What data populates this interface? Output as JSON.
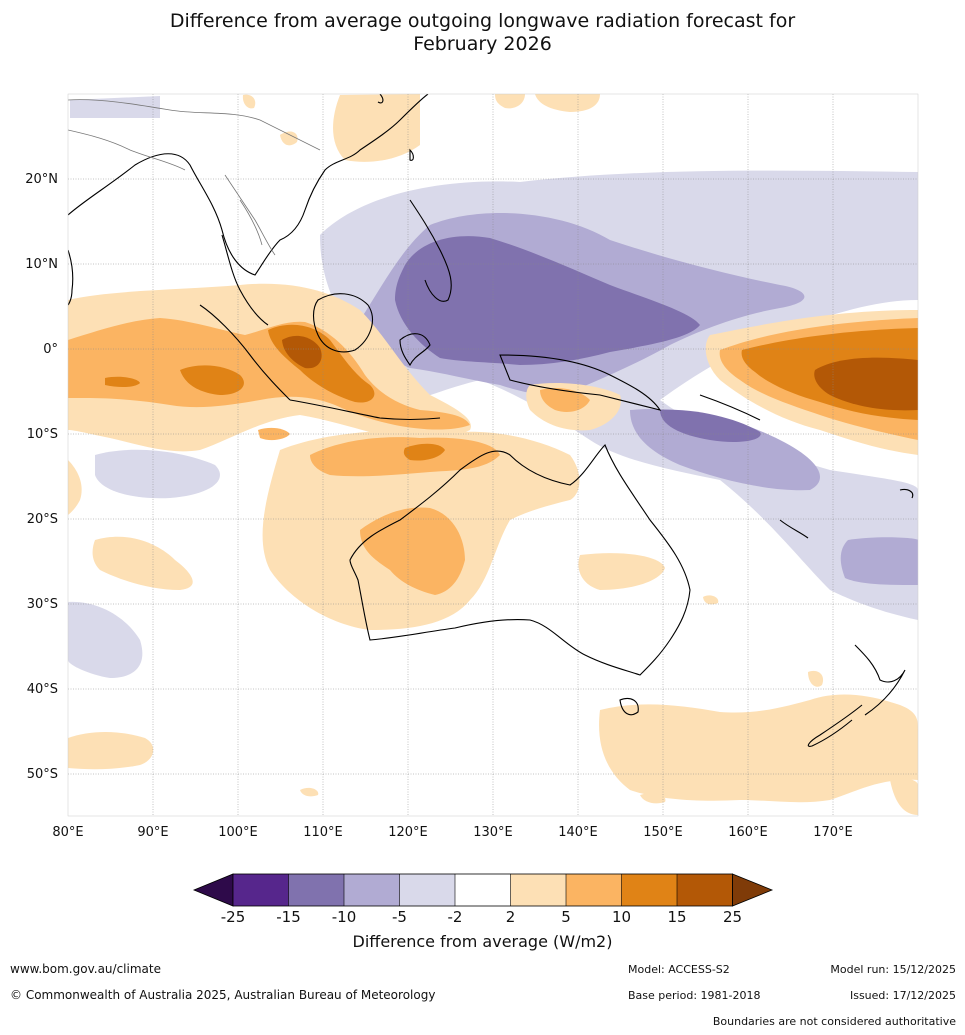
{
  "title": {
    "line1": "Difference from average outgoing longwave radiation forecast for",
    "line2": "February 2026"
  },
  "map": {
    "lat_labels": [
      "20°N",
      "10°N",
      "0°",
      "10°S",
      "20°S",
      "30°S",
      "40°S",
      "50°S"
    ],
    "lon_labels": [
      "80°E",
      "90°E",
      "100°E",
      "110°E",
      "120°E",
      "130°E",
      "140°E",
      "150°E",
      "160°E",
      "170°E"
    ]
  },
  "colorbar": {
    "ticks": [
      "-25",
      "-15",
      "-10",
      "-5",
      "-2",
      "2",
      "5",
      "10",
      "15",
      "25"
    ],
    "colors": [
      "#2e0a4a",
      "#56268c",
      "#8072ae",
      "#b1abd3",
      "#d9d9ea",
      "#ffffff",
      "#fde0b5",
      "#fbb462",
      "#e08316",
      "#b35806",
      "#7f3b08"
    ],
    "label": "Difference from average (W/m2)"
  },
  "footer": {
    "url": "www.bom.gov.au/climate",
    "copyright": "© Commonwealth of Australia 2025, Australian Bureau of Meteorology",
    "model": "Model: ACCESS-S2",
    "model_run": "Model run: 15/12/2025",
    "base_period": "Base period: 1981-2018",
    "issued": "Issued: 17/12/2025",
    "disclaimer": "Boundaries are not considered authoritative"
  }
}
